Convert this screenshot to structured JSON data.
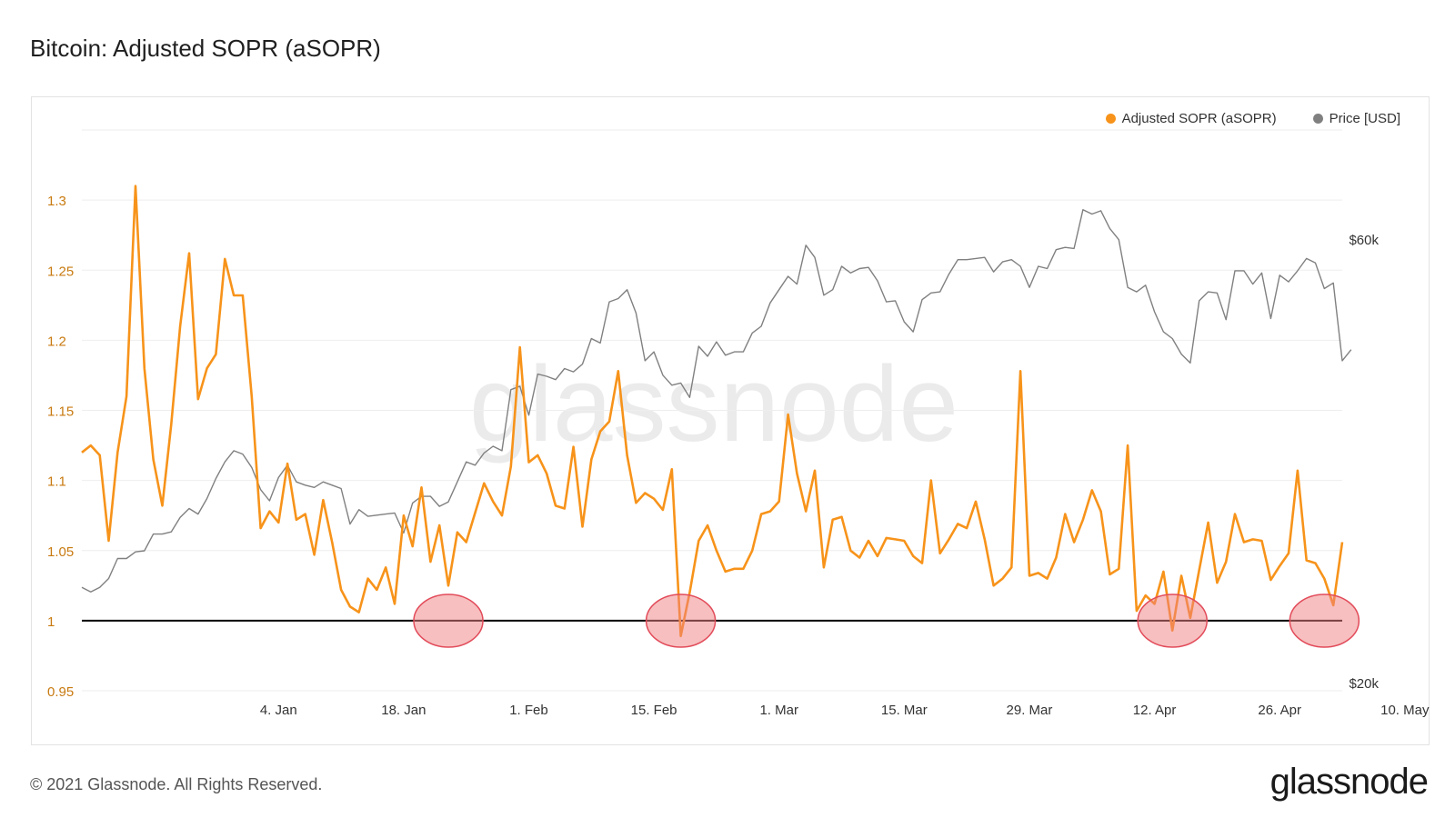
{
  "title": "Bitcoin: Adjusted SOPR (aSOPR)",
  "watermark": "glassnode",
  "footer": {
    "copyright": "© 2021 Glassnode. All Rights Reserved.",
    "brand": "glassnode"
  },
  "colors": {
    "asopr": "#f7931a",
    "price": "#808080",
    "baseline": "#000000",
    "highlight": "#f08080",
    "axis_left": "#c87a10",
    "grid": "#eeeeee"
  },
  "chart_data": {
    "type": "line",
    "title": "Bitcoin: Adjusted SOPR (aSOPR)",
    "x_ticks": [
      "4. Jan",
      "18. Jan",
      "1. Feb",
      "15. Feb",
      "1. Mar",
      "15. Mar",
      "29. Mar",
      "12. Apr",
      "26. Apr",
      "10. May"
    ],
    "y_left": {
      "ylim": [
        0.95,
        1.35
      ],
      "ticks": [
        "0.95",
        "1",
        "1.05",
        "1.1",
        "1.15",
        "1.2",
        "1.25",
        "1.3"
      ]
    },
    "y_right": {
      "ticks": [
        "$20k",
        "$60k"
      ],
      "range_k": [
        20,
        60
      ]
    },
    "baseline": 1,
    "highlight_circles_at": [
      "23. Jan",
      "1. Mar",
      "24. Apr",
      "11. May"
    ],
    "legend": [
      "Adjusted SOPR (aSOPR)",
      "Price [USD]"
    ],
    "series": [
      {
        "name": "Adjusted SOPR (aSOPR)",
        "axis": "left",
        "values": [
          1.12,
          1.125,
          1.118,
          1.057,
          1.12,
          1.16,
          1.31,
          1.18,
          1.115,
          1.082,
          1.14,
          1.21,
          1.262,
          1.158,
          1.18,
          1.19,
          1.258,
          1.232,
          1.232,
          1.16,
          1.066,
          1.078,
          1.07,
          1.112,
          1.072,
          1.076,
          1.047,
          1.086,
          1.056,
          1.022,
          1.01,
          1.006,
          1.03,
          1.022,
          1.038,
          1.012,
          1.075,
          1.053,
          1.095,
          1.042,
          1.068,
          1.025,
          1.063,
          1.056,
          1.077,
          1.098,
          1.085,
          1.075,
          1.11,
          1.195,
          1.113,
          1.118,
          1.105,
          1.082,
          1.08,
          1.124,
          1.067,
          1.115,
          1.135,
          1.142,
          1.178,
          1.118,
          1.084,
          1.091,
          1.087,
          1.079,
          1.108,
          0.989,
          1.02,
          1.057,
          1.068,
          1.05,
          1.035,
          1.037,
          1.037,
          1.05,
          1.076,
          1.078,
          1.085,
          1.147,
          1.105,
          1.078,
          1.107,
          1.038,
          1.072,
          1.074,
          1.05,
          1.045,
          1.057,
          1.046,
          1.059,
          1.058,
          1.057,
          1.046,
          1.041,
          1.1,
          1.048,
          1.058,
          1.069,
          1.066,
          1.085,
          1.058,
          1.025,
          1.03,
          1.038,
          1.178,
          1.032,
          1.034,
          1.03,
          1.045,
          1.076,
          1.056,
          1.072,
          1.093,
          1.078,
          1.033,
          1.037,
          1.125,
          1.007,
          1.018,
          1.012,
          1.035,
          0.993,
          1.032,
          1.002,
          1.036,
          1.07,
          1.027,
          1.042,
          1.076,
          1.056,
          1.058,
          1.057,
          1.029,
          1.039,
          1.048,
          1.107,
          1.043,
          1.041,
          1.03,
          1.011,
          1.056
        ]
      },
      {
        "name": "Price [USD]",
        "axis": "right",
        "values": [
          29.3,
          28.9,
          29.3,
          30.1,
          31.9,
          31.9,
          32.5,
          32.6,
          34.1,
          34.1,
          34.3,
          35.6,
          36.4,
          35.9,
          37.3,
          39.1,
          40.6,
          41.6,
          41.3,
          40.1,
          38.1,
          37.1,
          39.2,
          40.3,
          38.8,
          38.5,
          38.3,
          38.8,
          38.5,
          38.2,
          35.0,
          36.3,
          35.7,
          35.8,
          35.9,
          36.0,
          34.2,
          36.9,
          37.5,
          37.5,
          36.6,
          37.0,
          38.8,
          40.6,
          40.3,
          41.4,
          42.0,
          41.6,
          47.1,
          47.4,
          44.8,
          48.5,
          48.3,
          48.0,
          49.0,
          48.7,
          49.4,
          51.7,
          51.3,
          55.0,
          55.3,
          56.1,
          54.0,
          49.7,
          50.5,
          48.4,
          47.5,
          47.7,
          46.4,
          51.0,
          50.1,
          51.4,
          50.2,
          50.5,
          50.5,
          52.2,
          52.8,
          54.9,
          56.1,
          57.3,
          56.6,
          60.1,
          59.0,
          55.6,
          56.1,
          58.2,
          57.6,
          58.0,
          58.1,
          56.9,
          55.0,
          55.1,
          53.2,
          52.3,
          55.2,
          55.8,
          55.9,
          57.5,
          58.8,
          58.8,
          58.9,
          59.0,
          57.7,
          58.6,
          58.8,
          58.2,
          56.3,
          58.2,
          58.0,
          59.7,
          59.9,
          59.8,
          63.3,
          62.9,
          63.2,
          61.6,
          60.6,
          56.3,
          55.9,
          56.5,
          54.1,
          52.3,
          51.7,
          50.3,
          49.5,
          55.1,
          55.9,
          55.8,
          53.4,
          57.8,
          57.8,
          56.6,
          57.6,
          53.5,
          57.4,
          56.8,
          57.8,
          58.9,
          58.5,
          56.2,
          56.7,
          49.7,
          50.7
        ]
      }
    ]
  }
}
